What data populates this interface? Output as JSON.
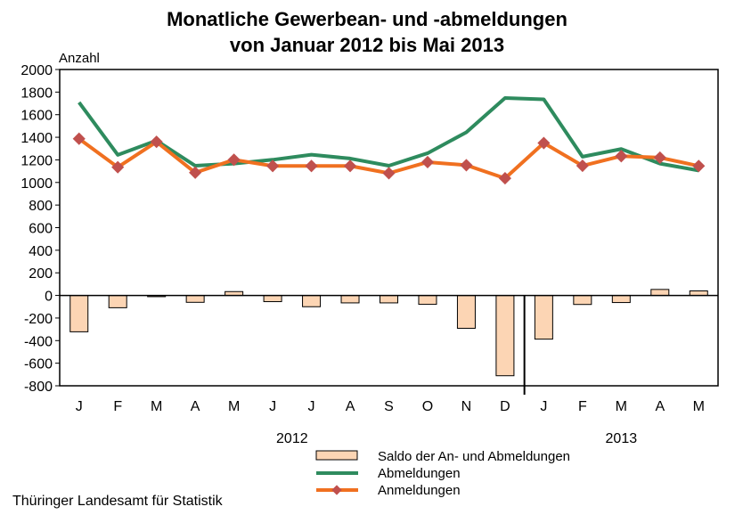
{
  "chart_data": {
    "type": "bar+line",
    "title_line1": "Monatliche Gewerbean- und -abmeldungen",
    "title_line2": "von Januar 2012 bis Mai 2013",
    "ylabel": "Anzahl",
    "ylim": [
      -800,
      2000
    ],
    "yticks": [
      2000,
      1800,
      1600,
      1400,
      1200,
      1000,
      800,
      600,
      400,
      200,
      0,
      -200,
      -400,
      -600,
      -800
    ],
    "categories": [
      "J",
      "F",
      "M",
      "A",
      "M",
      "J",
      "J",
      "A",
      "S",
      "O",
      "N",
      "D",
      "J",
      "F",
      "M",
      "A",
      "M"
    ],
    "years": [
      {
        "label": "2012",
        "from": 0,
        "to": 11
      },
      {
        "label": "2013",
        "from": 12,
        "to": 16
      }
    ],
    "series": [
      {
        "name": "Saldo der An- und Abmeldungen",
        "type": "bar",
        "color": "#FCD5B4",
        "values": [
          -322,
          -109,
          -11,
          -61,
          34,
          -55,
          -100,
          -66,
          -66,
          -79,
          -291,
          -711,
          -387,
          -80,
          -63,
          53,
          40
        ]
      },
      {
        "name": "Abmeldungen",
        "type": "line",
        "color": "#2E8B5E",
        "values": [
          1709,
          1244,
          1371,
          1148,
          1167,
          1201,
          1246,
          1212,
          1148,
          1259,
          1444,
          1748,
          1736,
          1228,
          1296,
          1167,
          1106
        ]
      },
      {
        "name": "Anmeldungen",
        "type": "line",
        "color": "#F07020",
        "marker_color": "#C0504D",
        "values": [
          1387,
          1135,
          1360,
          1087,
          1201,
          1146,
          1146,
          1146,
          1082,
          1180,
          1153,
          1037,
          1349,
          1148,
          1233,
          1220,
          1146
        ]
      }
    ],
    "grid": false,
    "legend_position": "bottom"
  },
  "footer": "Thüringer Landesamt für Statistik"
}
